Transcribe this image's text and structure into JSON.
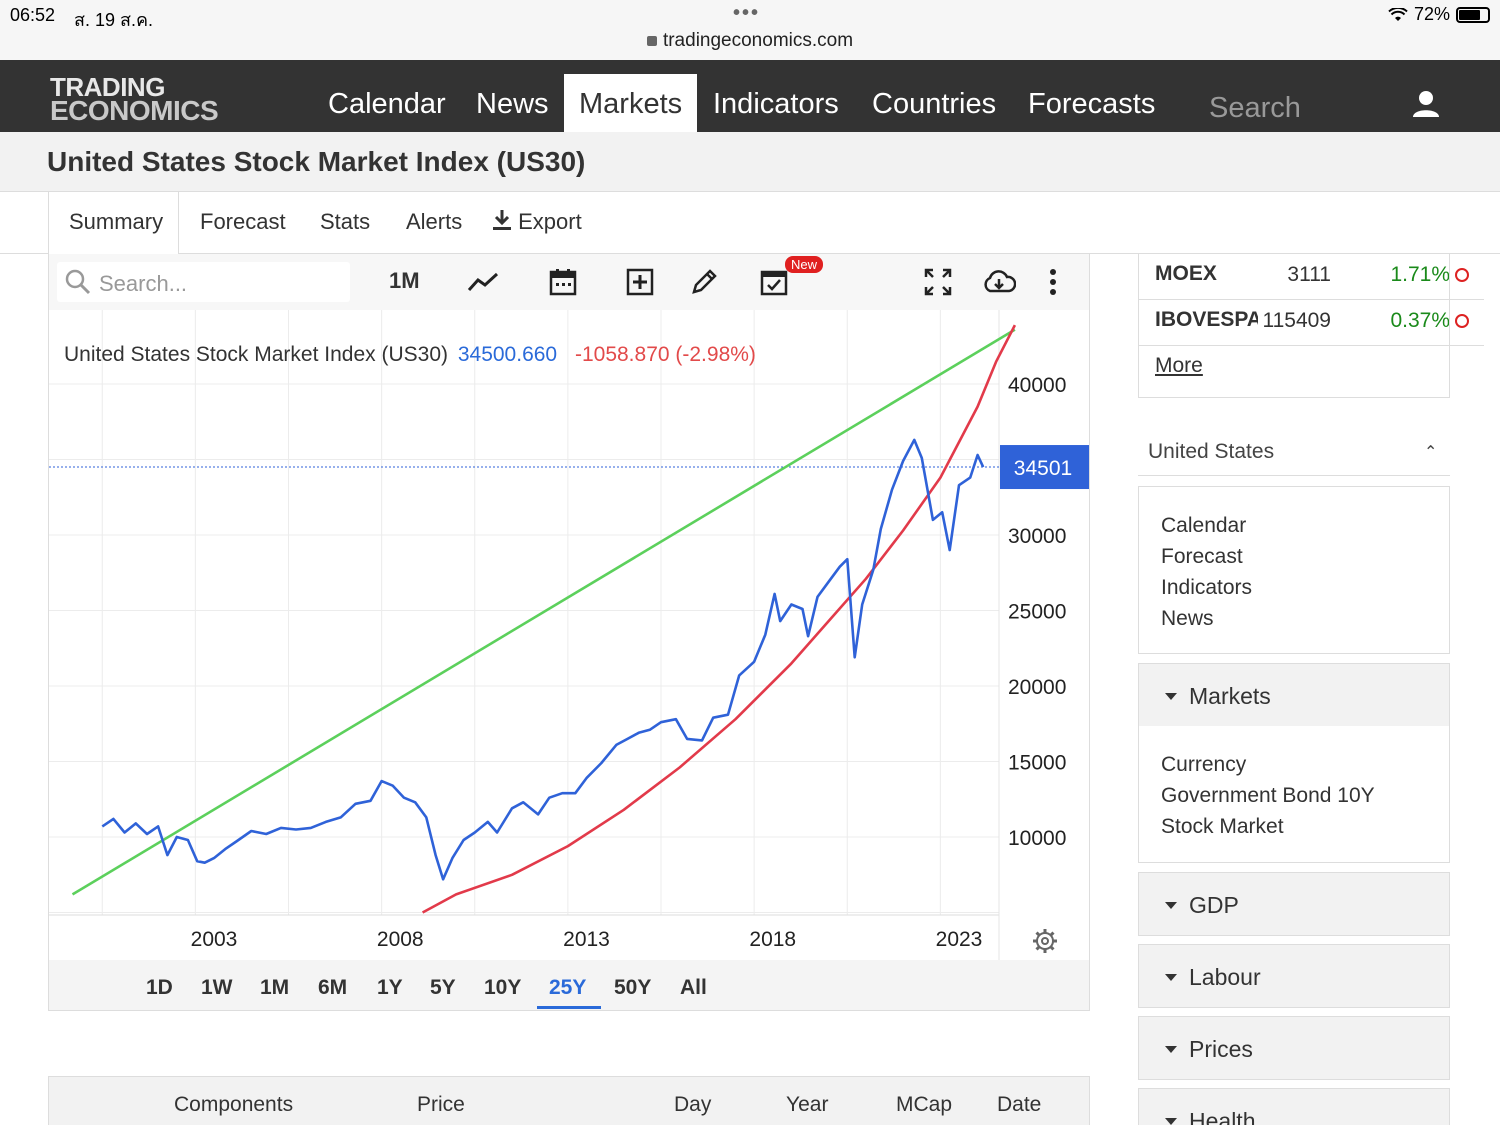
{
  "status": {
    "time": "06:52",
    "date": "ส. 19 ส.ค.",
    "url": "tradingeconomics.com",
    "battery": "72%"
  },
  "nav": {
    "logo_line1": "TRADING",
    "logo_line2": "ECONOMICS",
    "items": [
      "Calendar",
      "News",
      "Markets",
      "Indicators",
      "Countries",
      "Forecasts"
    ],
    "active": "Markets",
    "search_placeholder": "Search"
  },
  "page": {
    "title": "United States Stock Market Index (US30)"
  },
  "subtabs": {
    "summary": "Summary",
    "forecast": "Forecast",
    "stats": "Stats",
    "alerts": "Alerts",
    "export": "Export"
  },
  "toolbar": {
    "search_placeholder": "Search...",
    "interval": "1M",
    "new_badge": "New"
  },
  "chart_legend": {
    "name": "United States Stock Market Index (US30)",
    "value": "34500.660",
    "change": "-1058.870 (-2.98%)"
  },
  "chart_data": {
    "type": "line",
    "title": "",
    "xlabel": "",
    "ylabel": "",
    "x_ticks": [
      "2003",
      "2008",
      "2013",
      "2018",
      "2023"
    ],
    "y_ticks": [
      10000,
      15000,
      20000,
      25000,
      30000,
      40000
    ],
    "ylim": [
      5000,
      42000
    ],
    "current_label": "34501",
    "current_value": 34501,
    "grid": true,
    "colors": {
      "price": "#2f62d8",
      "trend": "#5cd05c",
      "curve": "#e23a4a",
      "current": "#2f62d8"
    },
    "series": [
      {
        "name": "US30",
        "x": [
          2000.0,
          2000.3,
          2000.6,
          2000.9,
          2001.2,
          2001.5,
          2001.75,
          2002.0,
          2002.3,
          2002.55,
          2002.75,
          2003.0,
          2003.3,
          2003.6,
          2004.0,
          2004.4,
          2004.8,
          2005.2,
          2005.6,
          2006.0,
          2006.4,
          2006.8,
          2007.2,
          2007.5,
          2007.8,
          2008.1,
          2008.4,
          2008.7,
          2008.95,
          2009.15,
          2009.4,
          2009.7,
          2010.0,
          2010.35,
          2010.6,
          2011.0,
          2011.3,
          2011.7,
          2012.0,
          2012.35,
          2012.7,
          2013.0,
          2013.4,
          2013.8,
          2014.1,
          2014.4,
          2014.7,
          2015.0,
          2015.4,
          2015.7,
          2016.1,
          2016.4,
          2016.8,
          2017.1,
          2017.5,
          2017.8,
          2018.05,
          2018.2,
          2018.5,
          2018.8,
          2018.95,
          2019.2,
          2019.5,
          2019.8,
          2020.0,
          2020.2,
          2020.4,
          2020.7,
          2020.9,
          2021.2,
          2021.5,
          2021.8,
          2022.0,
          2022.3,
          2022.55,
          2022.75,
          2023.0,
          2023.3,
          2023.5,
          2023.65
        ],
        "values": [
          10700,
          11200,
          10300,
          10900,
          10200,
          10700,
          8800,
          10000,
          9800,
          8400,
          8300,
          8600,
          9200,
          9700,
          10400,
          10200,
          10600,
          10500,
          10600,
          11000,
          11300,
          12200,
          12400,
          13700,
          13400,
          12600,
          12300,
          11300,
          8800,
          7200,
          8600,
          9800,
          10300,
          11000,
          10300,
          11900,
          12300,
          11500,
          12600,
          12900,
          12900,
          13900,
          14900,
          16100,
          16500,
          16900,
          17100,
          17600,
          17800,
          16500,
          16400,
          17900,
          18100,
          20700,
          21600,
          23400,
          26100,
          24300,
          25400,
          25100,
          23300,
          25900,
          26900,
          27900,
          28400,
          21900,
          25400,
          27700,
          30400,
          33000,
          34900,
          36300,
          35100,
          31000,
          31500,
          29000,
          33300,
          33800,
          35300,
          34500
        ]
      },
      {
        "name": "Trend",
        "x": [
          1999.2,
          2024.5
        ],
        "values": [
          6200,
          43600
        ]
      },
      {
        "name": "Growth curve",
        "x": [
          2008.6,
          2009.5,
          2011.0,
          2012.5,
          2014.0,
          2015.5,
          2017.0,
          2018.5,
          2019.5,
          2020.5,
          2021.5,
          2022.5,
          2023.5,
          2024.0,
          2024.5
        ],
        "values": [
          5000,
          6200,
          7500,
          9400,
          11800,
          14600,
          17800,
          21500,
          24300,
          27100,
          30300,
          33800,
          38500,
          41500,
          43900
        ]
      }
    ]
  },
  "ranges": {
    "items": [
      "1D",
      "1W",
      "1M",
      "6M",
      "1Y",
      "5Y",
      "10Y",
      "25Y",
      "50Y",
      "All"
    ],
    "active": "25Y"
  },
  "components_header": {
    "components": "Components",
    "price": "Price",
    "day": "Day",
    "year": "Year",
    "mcap": "MCap",
    "date": "Date"
  },
  "sidebar": {
    "markets": [
      {
        "name": "MOEX",
        "price": "3111",
        "change": "1.71%"
      },
      {
        "name": "IBOVESPA",
        "price": "115409",
        "change": "0.37%"
      }
    ],
    "more": "More",
    "country": "United States",
    "country_links": [
      "Calendar",
      "Forecast",
      "Indicators",
      "News"
    ],
    "markets_section": "Markets",
    "markets_links": [
      "Currency",
      "Government Bond 10Y",
      "Stock Market"
    ],
    "gdp": "GDP",
    "labour": "Labour",
    "prices": "Prices",
    "health": "Health"
  }
}
